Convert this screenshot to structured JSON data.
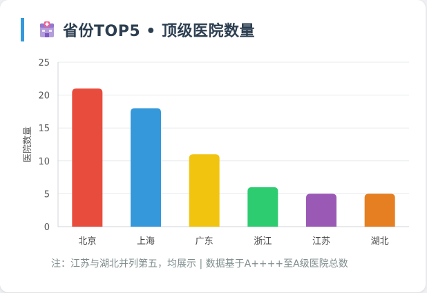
{
  "header": {
    "title": "省份TOP5 • 顶级医院数量",
    "icon": "hospital-icon",
    "accent_color": "#3498db"
  },
  "chart_data": {
    "type": "bar",
    "categories": [
      "北京",
      "上海",
      "广东",
      "浙江",
      "江苏",
      "湖北"
    ],
    "values": [
      21,
      18,
      11,
      6,
      5,
      5
    ],
    "colors": [
      "#e74c3c",
      "#3498db",
      "#f1c40f",
      "#2ecc71",
      "#9b59b6",
      "#e67e22"
    ],
    "title": "",
    "xlabel": "",
    "ylabel": "医院数量",
    "ylim": [
      0,
      25
    ],
    "yticks": [
      0,
      5,
      10,
      15,
      20,
      25
    ],
    "grid": true
  },
  "footer": {
    "note": "注：江苏与湖北并列第五，均展示 | 数据基于A++++至A级医院总数"
  }
}
